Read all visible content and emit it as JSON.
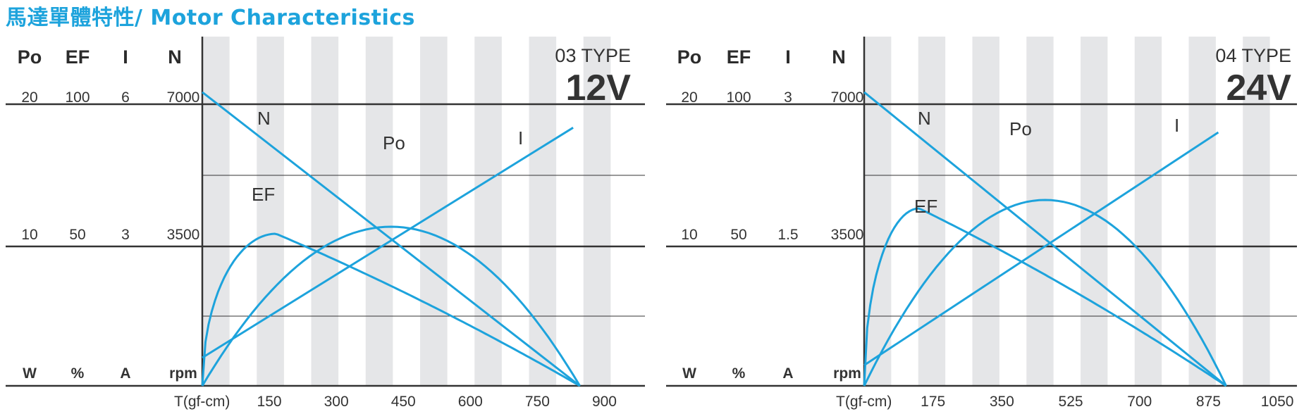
{
  "title": "馬達單體特性/ Motor Characteristics",
  "colors": {
    "accent": "#1da3dc",
    "stripe": "#e5e6e8",
    "axis": "#333333"
  },
  "chart_data": [
    {
      "type": "line",
      "model_type": "03 TYPE",
      "voltage": "12V",
      "axis_headers": [
        "Po",
        "EF",
        "I",
        "N"
      ],
      "scale_top": [
        "20",
        "100",
        "6",
        "7000"
      ],
      "scale_mid": [
        "10",
        "50",
        "3",
        "3500"
      ],
      "units": [
        "W",
        "%",
        "A",
        "rpm"
      ],
      "xlabel": "T(gf-cm)",
      "x_ticks": [
        "150",
        "300",
        "450",
        "600",
        "750",
        "900"
      ],
      "x_tick_values": [
        150,
        300,
        450,
        600,
        750,
        900
      ],
      "xlim": [
        0,
        975
      ],
      "frac_lim": [
        0,
        1.0
      ],
      "series": [
        {
          "name": "N",
          "label": "N",
          "shape": "line",
          "x": [
            0,
            845
          ],
          "y": [
            7300,
            0
          ],
          "max": 7000
        },
        {
          "name": "I",
          "label": "I",
          "shape": "line",
          "x": [
            0,
            830
          ],
          "y": [
            0.6,
            5.5
          ],
          "max": 6
        },
        {
          "name": "Po",
          "label": "Po",
          "shape": "parabola",
          "x": [
            0,
            845
          ],
          "peak": 11.3,
          "max": 20
        },
        {
          "name": "EF",
          "label": "EF",
          "shape": "efficiency",
          "x": [
            0,
            845
          ],
          "peak_x": 165,
          "peak": 54,
          "max": 100
        }
      ]
    },
    {
      "type": "line",
      "model_type": "04 TYPE",
      "voltage": "24V",
      "axis_headers": [
        "Po",
        "EF",
        "I",
        "N"
      ],
      "scale_top": [
        "20",
        "100",
        "3",
        "7000"
      ],
      "scale_mid": [
        "10",
        "50",
        "1.5",
        "3500"
      ],
      "units": [
        "W",
        "%",
        "A",
        "rpm"
      ],
      "xlabel": "T(gf-cm)",
      "x_ticks": [
        "175",
        "350",
        "525",
        "700",
        "875",
        "1050"
      ],
      "x_tick_values": [
        175,
        350,
        525,
        700,
        875,
        1050
      ],
      "xlim": [
        0,
        1100
      ],
      "frac_lim": [
        0,
        1.0
      ],
      "series": [
        {
          "name": "N",
          "label": "N",
          "shape": "line",
          "x": [
            0,
            920
          ],
          "y": [
            7300,
            0
          ],
          "max": 7000
        },
        {
          "name": "I",
          "label": "I",
          "shape": "line",
          "x": [
            0,
            900
          ],
          "y": [
            0.22,
            2.7
          ],
          "max": 3
        },
        {
          "name": "Po",
          "label": "Po",
          "shape": "parabola",
          "x": [
            0,
            920
          ],
          "peak": 13.2,
          "max": 20
        },
        {
          "name": "EF",
          "label": "EF",
          "shape": "efficiency",
          "x": [
            0,
            920
          ],
          "peak_x": 140,
          "peak": 63,
          "max": 100
        }
      ]
    }
  ]
}
